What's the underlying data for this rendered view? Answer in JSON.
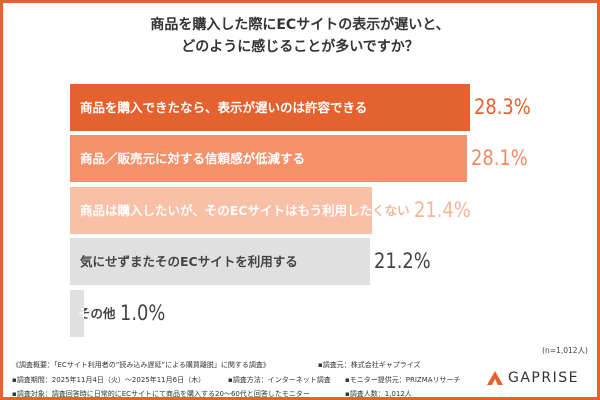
{
  "title_lines": [
    "商品を購入した際にECサイトの表示が遅いと、",
    "どのように感じることが多いですか？"
  ],
  "chart_data": {
    "type": "bar",
    "orientation": "horizontal",
    "title": "商品を購入した際にECサイトの表示が遅いと、どのように感じることが多いですか？",
    "categories": [
      "商品を購入できたなら、表示が遅いのは許容できる",
      "商品／販売元に対する信頼感が低減する",
      "商品は購入したいが、そのECサイトはもう利用したくない",
      "気にせずまたそのECサイトを利用する",
      "その他"
    ],
    "values": [
      28.3,
      28.1,
      21.4,
      21.2,
      1.0
    ],
    "value_labels": [
      "28.3%",
      "28.1%",
      "21.4%",
      "21.2%",
      "1.0%"
    ],
    "bar_colors": [
      "#e4622f",
      "#f4906a",
      "#f9c0a8",
      "#e0e0e0",
      "#e0e0e0"
    ],
    "label_colors": [
      "#ffffff",
      "#ffffff",
      "#ffffff",
      "#444444",
      "#444444"
    ],
    "value_colors": [
      "#e4622f",
      "#f08a65",
      "#f7b497",
      "#444444",
      "#444444"
    ],
    "unit": "%",
    "grid": false
  },
  "sample_note": "(n=1,012人)",
  "footer": {
    "line1a": "《調査概要：「ECサイト利用者の“読み込み遅延”による購買離脱」に関する調査》",
    "line1b": "▪調査元：株式会社ギャプライズ",
    "line2a": "▪調査期間：2025年11月4日（火）〜2025年11月6日（木）",
    "line2b": "▪調査方法：インターネット調査",
    "line2c": "▪モニター提供元：PRIZMAリサーチ",
    "line3a": "▪調査対象：調査回答時に日常的にECサイトにて商品を購入する20〜60代と回答したモニター",
    "line3b": "▪調査人数：1,012人"
  },
  "logo": {
    "text": "GAPRISE",
    "color": "#e4622f"
  }
}
